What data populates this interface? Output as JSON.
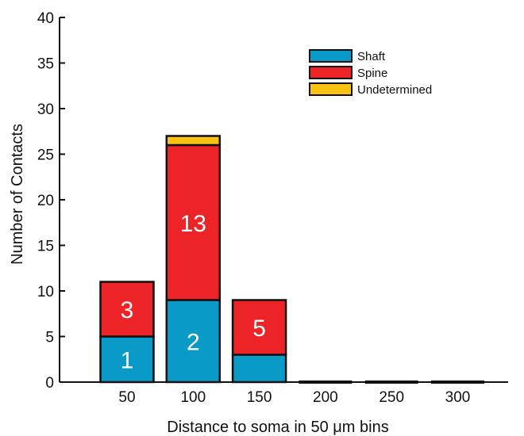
{
  "chart_data": {
    "type": "bar",
    "stacked": true,
    "categories": [
      "50",
      "100",
      "150",
      "200",
      "250",
      "300"
    ],
    "series": [
      {
        "name": "Shaft",
        "color": "#0a9ac7",
        "values": [
          5,
          9,
          3,
          0,
          0,
          0
        ]
      },
      {
        "name": "Spine",
        "color": "#ec2327",
        "values": [
          6,
          17,
          6,
          0,
          0,
          0
        ]
      },
      {
        "name": "Undetermined",
        "color": "#f8c313",
        "values": [
          0,
          1,
          0,
          0,
          0,
          0
        ]
      }
    ],
    "bar_labels": [
      {
        "category": "50",
        "series": "Shaft",
        "text": "1"
      },
      {
        "category": "50",
        "series": "Spine",
        "text": "3"
      },
      {
        "category": "100",
        "series": "Shaft",
        "text": "2"
      },
      {
        "category": "100",
        "series": "Spine",
        "text": "13"
      },
      {
        "category": "150",
        "series": "Spine",
        "text": "5"
      }
    ],
    "xlabel": "Distance to soma in 50 μm bins",
    "ylabel": "Number of Contacts",
    "ylim": [
      0,
      40
    ],
    "yticks": [
      0,
      5,
      10,
      15,
      20,
      25,
      30,
      35,
      40
    ],
    "grid": false,
    "legend_position": "top-right"
  }
}
